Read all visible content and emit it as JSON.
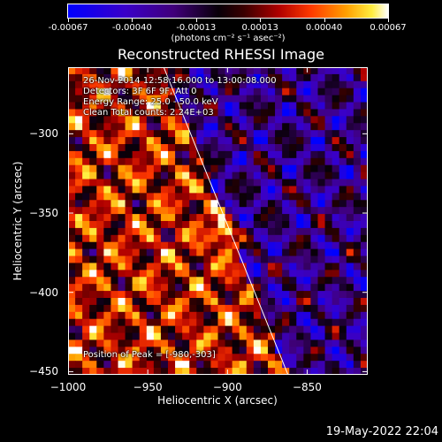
{
  "colorbar": {
    "ticks": [
      "-0.00067",
      "-0.00040",
      "-0.00013",
      "0.00013",
      "0.00040",
      "0.00067"
    ],
    "unit_label": "(photons cm⁻² s⁻¹ asec⁻²)",
    "range": [
      -0.00067,
      0.00067
    ],
    "colormap": "blue-purple-black-red-orange-yellow-white"
  },
  "title": "Reconstructed RHESSI Image",
  "info": {
    "time_range": "26-Nov-2014 12:58:16.000 to 13:00:08.000",
    "detectors": "Detectors: 3F 6F 9F, Att 0",
    "energy_range": "Energy Range: 25.0 - 50.0 keV",
    "clean_counts": "Clean     Total counts: 2.24E+03",
    "peak_position": "Position of Peak = [-980,-303]"
  },
  "footer": {
    "timestamp": "19-May-2022 22:04"
  },
  "chart_data": {
    "type": "heatmap",
    "title": "Reconstructed RHESSI Image",
    "xlabel": "Heliocentric X (arcsec)",
    "ylabel": "Heliocentric Y (arcsec)",
    "x_ticks": [
      "−1000",
      "−950",
      "−900",
      "−850"
    ],
    "y_ticks": [
      "−300",
      "−350",
      "−400",
      "−450"
    ],
    "x_tick_values": [
      -1000,
      -950,
      -900,
      -850
    ],
    "y_tick_values": [
      -300,
      -350,
      -400,
      -450
    ],
    "xlim": [
      -1000,
      -812
    ],
    "ylim": [
      -452,
      -258
    ],
    "limb_line": [
      [
        -940,
        -258
      ],
      [
        -862,
        -452
      ]
    ],
    "peak": [
      -980,
      -303
    ],
    "grid": false
  }
}
